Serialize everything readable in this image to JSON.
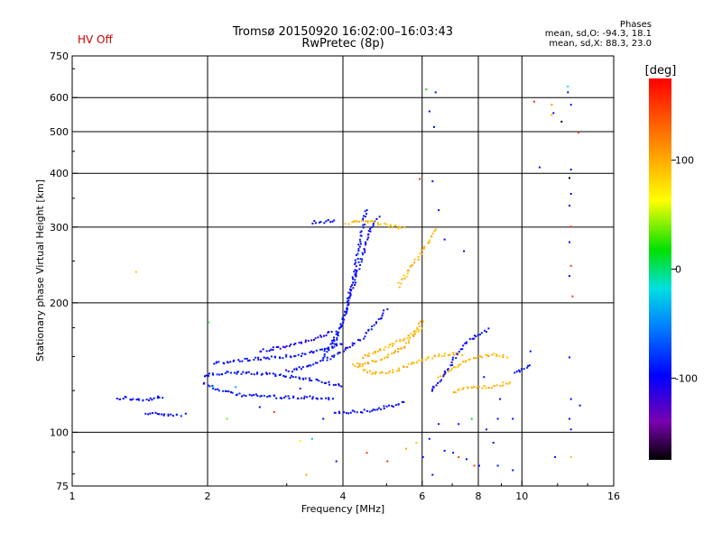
{
  "header": {
    "title_line1": "Tromsø 20150920 16:02:00–16:03:43",
    "title_line2": "RwPretec (8p)",
    "status": "HV Off"
  },
  "phases": {
    "title": "Phases",
    "line_o": "mean, sd,O: -94.3, 18.1",
    "line_x": "mean, sd,X: 88.3, 23.0"
  },
  "colorbar": {
    "unit": "[deg]",
    "ticks": [
      {
        "value": 100,
        "label": "100"
      },
      {
        "value": 0,
        "label": "0"
      },
      {
        "value": -100,
        "label": "-100"
      }
    ],
    "range": [
      -175,
      175
    ]
  },
  "chart_data": {
    "type": "scatter",
    "xlabel": "Frequency [MHz]",
    "ylabel": "Stationary phase Virtual Height [km]",
    "xscale": "log",
    "yscale": "log",
    "xlim": [
      1,
      16
    ],
    "ylim": [
      75,
      750
    ],
    "x_ticks": [
      {
        "value": 1,
        "label": "1"
      },
      {
        "value": 2,
        "label": "2"
      },
      {
        "value": 4,
        "label": "4"
      },
      {
        "value": 6,
        "label": "6"
      },
      {
        "value": 8,
        "label": "8"
      },
      {
        "value": 10,
        "label": "10"
      },
      {
        "value": 16,
        "label": "16"
      }
    ],
    "y_ticks": [
      {
        "value": 75,
        "label": "75"
      },
      {
        "value": 100,
        "label": "100"
      },
      {
        "value": 200,
        "label": "200"
      },
      {
        "value": 300,
        "label": "300"
      },
      {
        "value": 400,
        "label": "400"
      },
      {
        "value": 500,
        "label": "500"
      },
      {
        "value": 600,
        "label": "600"
      },
      {
        "value": 750,
        "label": "750"
      }
    ],
    "grid_x": [
      2,
      4,
      6,
      8,
      10
    ],
    "grid_y": [
      100,
      200,
      300,
      400,
      500,
      600
    ],
    "color_by": "phase_deg",
    "traces": [
      {
        "phase": -95,
        "points": [
          [
            1.25,
            120
          ],
          [
            1.3,
            121
          ],
          [
            1.35,
            120
          ],
          [
            1.42,
            119
          ],
          [
            1.5,
            120
          ],
          [
            1.55,
            121
          ],
          [
            1.6,
            120
          ]
        ]
      },
      {
        "phase": -95,
        "points": [
          [
            1.45,
            111
          ],
          [
            1.55,
            111
          ],
          [
            1.75,
            110
          ]
        ]
      },
      {
        "phase": -95,
        "points": [
          [
            1.95,
            131
          ],
          [
            2.1,
            126
          ],
          [
            2.3,
            123
          ],
          [
            2.6,
            122
          ],
          [
            3.0,
            121
          ],
          [
            3.4,
            121
          ],
          [
            3.8,
            120
          ]
        ]
      },
      {
        "phase": -95,
        "points": [
          [
            1.95,
            136
          ],
          [
            2.2,
            138
          ],
          [
            2.5,
            138
          ],
          [
            2.9,
            136
          ],
          [
            3.3,
            134
          ],
          [
            3.7,
            131
          ],
          [
            4.0,
            128
          ]
        ]
      },
      {
        "phase": -95,
        "points": [
          [
            2.05,
            145
          ],
          [
            2.4,
            148
          ],
          [
            2.8,
            150
          ],
          [
            3.2,
            152
          ],
          [
            3.6,
            156
          ],
          [
            4.0,
            162
          ]
        ]
      },
      {
        "phase": -105,
        "points": [
          [
            2.6,
            155
          ],
          [
            2.9,
            158
          ],
          [
            3.2,
            162
          ],
          [
            3.5,
            167
          ],
          [
            3.8,
            172
          ]
        ]
      },
      {
        "phase": -95,
        "points": [
          [
            3.0,
            139
          ],
          [
            3.4,
            144
          ],
          [
            3.8,
            151
          ],
          [
            4.1,
            158
          ],
          [
            4.4,
            167
          ],
          [
            4.7,
            180
          ],
          [
            5.0,
            195
          ]
        ]
      },
      {
        "phase": -95,
        "points": [
          [
            3.6,
            150
          ],
          [
            3.85,
            165
          ],
          [
            4.0,
            185
          ],
          [
            4.1,
            205
          ],
          [
            4.2,
            230
          ],
          [
            4.3,
            262
          ],
          [
            4.4,
            300
          ],
          [
            4.5,
            335
          ]
        ]
      },
      {
        "phase": -95,
        "points": [
          [
            3.75,
            160
          ],
          [
            3.95,
            180
          ],
          [
            4.15,
            210
          ],
          [
            4.3,
            240
          ],
          [
            4.45,
            270
          ],
          [
            4.6,
            300
          ],
          [
            4.8,
            320
          ]
        ]
      },
      {
        "phase": -95,
        "points": [
          [
            3.4,
            309
          ],
          [
            3.6,
            310
          ],
          [
            3.85,
            312
          ]
        ]
      },
      {
        "phase": -95,
        "points": [
          [
            3.8,
            112
          ],
          [
            4.2,
            112
          ],
          [
            4.6,
            113
          ],
          [
            5.0,
            115
          ],
          [
            5.5,
            118
          ]
        ]
      },
      {
        "phase": 95,
        "points": [
          [
            4.05,
            308
          ],
          [
            4.3,
            310
          ],
          [
            4.6,
            310
          ],
          [
            4.9,
            306
          ],
          [
            5.2,
            302
          ],
          [
            5.5,
            298
          ]
        ]
      },
      {
        "phase": 95,
        "points": [
          [
            4.4,
            150
          ],
          [
            4.8,
            156
          ],
          [
            5.2,
            162
          ],
          [
            5.6,
            168
          ],
          [
            6.0,
            175
          ]
        ]
      },
      {
        "phase": 100,
        "points": [
          [
            4.3,
            145
          ],
          [
            4.7,
            147
          ],
          [
            5.1,
            152
          ],
          [
            5.5,
            160
          ],
          [
            5.8,
            172
          ],
          [
            6.0,
            185
          ]
        ]
      },
      {
        "phase": 95,
        "points": [
          [
            4.2,
            145
          ],
          [
            4.6,
            138
          ],
          [
            5.0,
            138
          ],
          [
            5.4,
            142
          ],
          [
            5.8,
            146
          ],
          [
            6.2,
            150
          ],
          [
            6.6,
            152
          ],
          [
            7.0,
            153
          ],
          [
            7.4,
            152
          ]
        ]
      },
      {
        "phase": 95,
        "points": [
          [
            6.5,
            135
          ],
          [
            7.0,
            142
          ],
          [
            7.5,
            147
          ],
          [
            8.0,
            150
          ],
          [
            8.5,
            152
          ],
          [
            9.0,
            152
          ],
          [
            9.3,
            150
          ]
        ]
      },
      {
        "phase": 95,
        "points": [
          [
            7.0,
            125
          ],
          [
            7.5,
            127
          ],
          [
            8.0,
            128
          ],
          [
            8.5,
            128
          ],
          [
            9.0,
            130
          ],
          [
            9.5,
            131
          ]
        ]
      },
      {
        "phase": 95,
        "points": [
          [
            5.3,
            220
          ],
          [
            5.6,
            240
          ],
          [
            5.9,
            260
          ],
          [
            6.2,
            280
          ],
          [
            6.4,
            300
          ]
        ]
      },
      {
        "phase": -95,
        "points": [
          [
            6.25,
            125
          ],
          [
            6.8,
            140
          ],
          [
            7.2,
            155
          ],
          [
            7.6,
            165
          ],
          [
            8.0,
            170
          ],
          [
            8.5,
            175
          ]
        ]
      },
      {
        "phase": -95,
        "points": [
          [
            9.6,
            139
          ],
          [
            10.0,
            141
          ],
          [
            10.5,
            145
          ]
        ]
      }
    ],
    "points": [
      [
        1.38,
        237,
        90
      ],
      [
        2.0,
        181,
        10
      ],
      [
        1.78,
        111,
        -95
      ],
      [
        2.05,
        128,
        -20
      ],
      [
        2.2,
        108,
        40
      ],
      [
        2.3,
        128,
        -40
      ],
      [
        2.6,
        115,
        -95
      ],
      [
        2.8,
        112,
        150
      ],
      [
        3.3,
        80,
        100
      ],
      [
        3.2,
        96,
        60
      ],
      [
        3.4,
        97,
        -30
      ],
      [
        3.2,
        127,
        -120
      ],
      [
        3.6,
        108,
        -95
      ],
      [
        3.85,
        86,
        -95
      ],
      [
        4.5,
        90,
        150
      ],
      [
        5.0,
        86,
        150
      ],
      [
        5.5,
        92,
        100
      ],
      [
        5.8,
        95,
        90
      ],
      [
        5.9,
        390,
        160
      ],
      [
        6.0,
        88,
        -95
      ],
      [
        6.1,
        630,
        20
      ],
      [
        6.4,
        620,
        -95
      ],
      [
        6.35,
        515,
        -95
      ],
      [
        6.2,
        97,
        -95
      ],
      [
        6.3,
        80,
        -95
      ],
      [
        6.7,
        91,
        -95
      ],
      [
        6.2,
        560,
        -95
      ],
      [
        6.3,
        385,
        -95
      ],
      [
        6.7,
        282,
        -95
      ],
      [
        6.5,
        330,
        -95
      ],
      [
        6.5,
        105,
        -95
      ],
      [
        7.0,
        90,
        -95
      ],
      [
        7.2,
        88,
        150
      ],
      [
        7.2,
        105,
        -95
      ],
      [
        7.5,
        87,
        -95
      ],
      [
        7.8,
        84,
        150
      ],
      [
        8.0,
        84,
        -95
      ],
      [
        8.6,
        95,
        -95
      ],
      [
        8.8,
        84,
        -95
      ],
      [
        9.5,
        82,
        -95
      ],
      [
        7.4,
        265,
        -95
      ],
      [
        7.7,
        108,
        10
      ],
      [
        8.3,
        102,
        -95
      ],
      [
        8.8,
        108,
        -95
      ],
      [
        9.5,
        108,
        -95
      ],
      [
        10.4,
        155,
        -95
      ],
      [
        10.6,
        590,
        160
      ],
      [
        10.9,
        415,
        -95
      ],
      [
        11.6,
        580,
        110
      ],
      [
        11.7,
        555,
        -95
      ],
      [
        11.6,
        550,
        95
      ],
      [
        12.2,
        530,
        -170
      ],
      [
        12.6,
        640,
        -20
      ],
      [
        12.6,
        620,
        -95
      ],
      [
        12.8,
        580,
        -95
      ],
      [
        12.8,
        410,
        -95
      ],
      [
        12.7,
        392,
        -175
      ],
      [
        12.8,
        360,
        -95
      ],
      [
        12.7,
        338,
        -95
      ],
      [
        12.8,
        302,
        160
      ],
      [
        12.7,
        278,
        -95
      ],
      [
        12.8,
        245,
        150
      ],
      [
        12.7,
        232,
        -95
      ],
      [
        12.9,
        208,
        150
      ],
      [
        12.7,
        150,
        -95
      ],
      [
        12.8,
        120,
        -95
      ],
      [
        12.8,
        102,
        -95
      ],
      [
        12.7,
        108,
        -95
      ],
      [
        12.8,
        88,
        90
      ],
      [
        13.3,
        500,
        150
      ],
      [
        13.4,
        116,
        -95
      ],
      [
        11.8,
        88,
        -95
      ],
      [
        8.2,
        135,
        -95
      ],
      [
        8.9,
        120,
        -95
      ],
      [
        9.8,
        140,
        -95
      ]
    ]
  }
}
